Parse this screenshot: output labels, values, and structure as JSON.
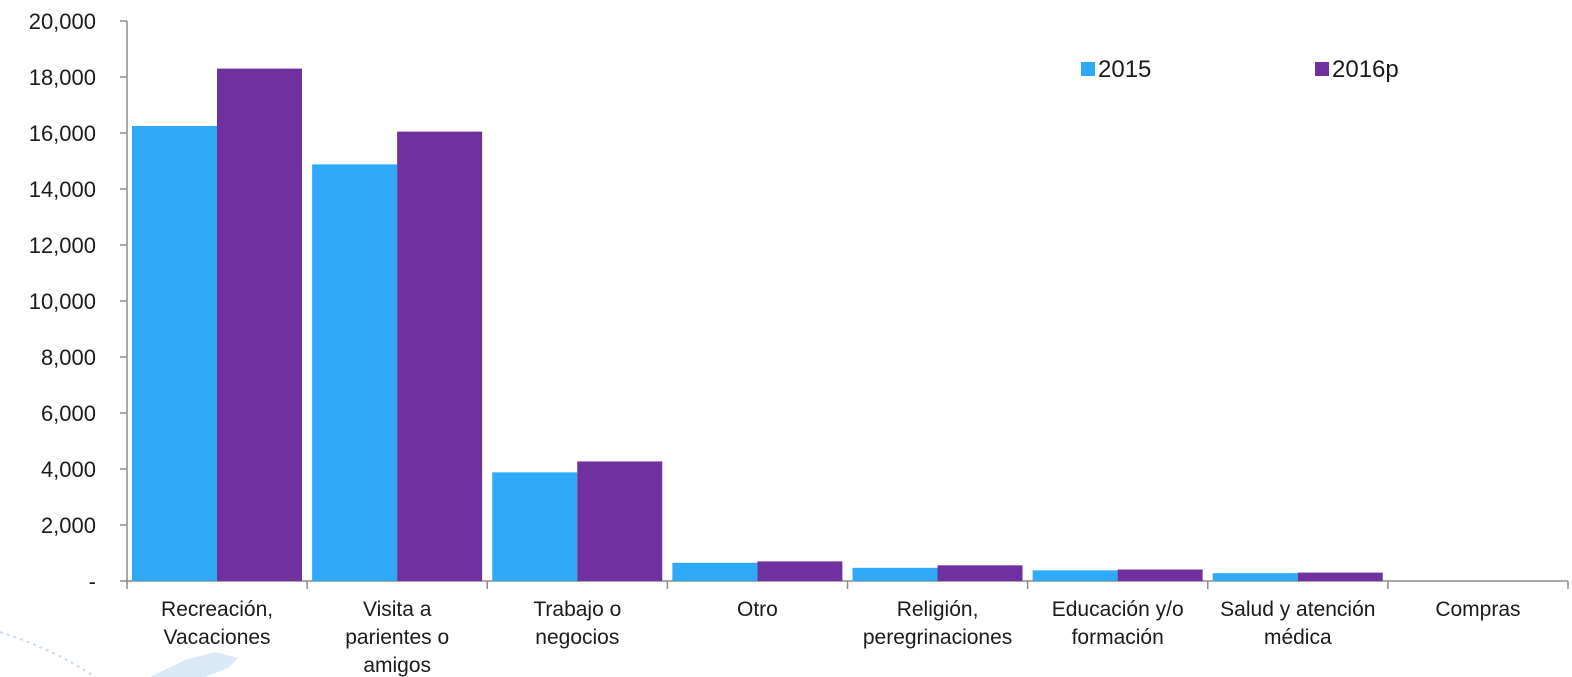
{
  "chart_data": {
    "type": "bar",
    "categories": [
      [
        "Recreación,",
        "Vacaciones"
      ],
      [
        "Visita a",
        "parientes o",
        "amigos"
      ],
      [
        "Trabajo o",
        "negocios"
      ],
      [
        "Otro"
      ],
      [
        "Religión,",
        "peregrinaciones"
      ],
      [
        "Educación y/o",
        "formación"
      ],
      [
        "Salud y atención",
        "médica"
      ],
      [
        "Compras"
      ]
    ],
    "series": [
      {
        "name": "2015",
        "color": "#2eaaf9",
        "values": [
          16250,
          14880,
          3880,
          650,
          470,
          380,
          280,
          0
        ]
      },
      {
        "name": "2016p",
        "color": "#7030a0",
        "values": [
          18300,
          16050,
          4270,
          700,
          560,
          410,
          300,
          0
        ]
      }
    ],
    "ylim": [
      0,
      20000
    ],
    "yticks": [
      0,
      2000,
      4000,
      6000,
      8000,
      10000,
      12000,
      14000,
      16000,
      18000,
      20000
    ],
    "ytick_labels": [
      "-",
      "2,000",
      "4,000",
      "6,000",
      "8,000",
      "10,000",
      "12,000",
      "14,000",
      "16,000",
      "18,000",
      "20,000"
    ],
    "grid": false,
    "legend_position": "top-right",
    "title": "",
    "xlabel": "",
    "ylabel": ""
  }
}
